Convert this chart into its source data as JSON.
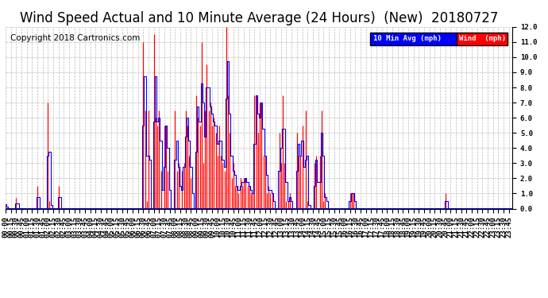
{
  "title": "Wind Speed Actual and 10 Minute Average (24 Hours)  (New)  20180727",
  "copyright": "Copyright 2018 Cartronics.com",
  "ylim": [
    0.0,
    12.0
  ],
  "yticks": [
    0.0,
    1.0,
    2.0,
    3.0,
    4.0,
    5.0,
    6.0,
    7.0,
    8.0,
    9.0,
    10.0,
    11.0,
    12.0
  ],
  "bg_color": "#ffffff",
  "grid_color": "#aaaaaa",
  "wind_color": "#ff0000",
  "avg_color": "#0000ff",
  "legend_avg_bg": "#0000ff",
  "legend_wind_bg": "#ff0000",
  "legend_avg_text": "10 Min Avg (mph)",
  "legend_wind_text": "Wind  (mph)",
  "title_fontsize": 12,
  "copyright_fontsize": 7.5,
  "tick_fontsize": 6.5,
  "wind_data": {
    "0": 0.3,
    "6": 0.7,
    "18": 1.5,
    "24": 7.0,
    "25": 0.5,
    "30": 1.5,
    "78": 11.0,
    "79": 6.5,
    "80": 0.5,
    "81": 6.5,
    "84": 11.5,
    "85": 6.0,
    "86": 5.5,
    "87": 6.5,
    "88": 2.5,
    "90": 5.5,
    "91": 5.5,
    "92": 2.5,
    "96": 6.5,
    "97": 2.5,
    "98": 3.0,
    "100": 2.5,
    "101": 3.0,
    "102": 6.5,
    "103": 5.5,
    "104": 3.5,
    "105": 2.0,
    "108": 7.5,
    "109": 6.0,
    "110": 5.5,
    "111": 11.0,
    "112": 3.0,
    "113": 6.5,
    "114": 9.5,
    "115": 6.5,
    "116": 7.0,
    "117": 5.5,
    "118": 6.0,
    "119": 5.0,
    "120": 3.5,
    "121": 5.5,
    "122": 3.5,
    "123": 3.0,
    "124": 2.5,
    "125": 12.5,
    "126": 7.5,
    "127": 5.0,
    "128": 2.0,
    "129": 3.0,
    "130": 1.5,
    "131": 1.5,
    "132": 1.0,
    "133": 2.0,
    "134": 1.5,
    "135": 2.0,
    "136": 2.0,
    "137": 1.5,
    "138": 1.5,
    "139": 1.0,
    "140": 1.0,
    "141": 7.5,
    "142": 7.5,
    "143": 5.0,
    "144": 7.0,
    "145": 7.0,
    "146": 3.5,
    "147": 3.5,
    "148": 1.0,
    "149": 1.5,
    "150": 1.0,
    "151": 1.0,
    "155": 5.0,
    "156": 3.0,
    "157": 7.5,
    "158": 3.0,
    "159": 0.5,
    "160": 0.5,
    "161": 1.0,
    "165": 5.0,
    "166": 3.5,
    "167": 3.5,
    "168": 5.5,
    "170": 6.5,
    "171": 0.5,
    "175": 3.0,
    "176": 3.5,
    "178": 3.5,
    "179": 6.5,
    "180": 0.5,
    "181": 1.0,
    "195": 1.0,
    "196": 1.0,
    "197": 1.0,
    "249": 1.0
  }
}
